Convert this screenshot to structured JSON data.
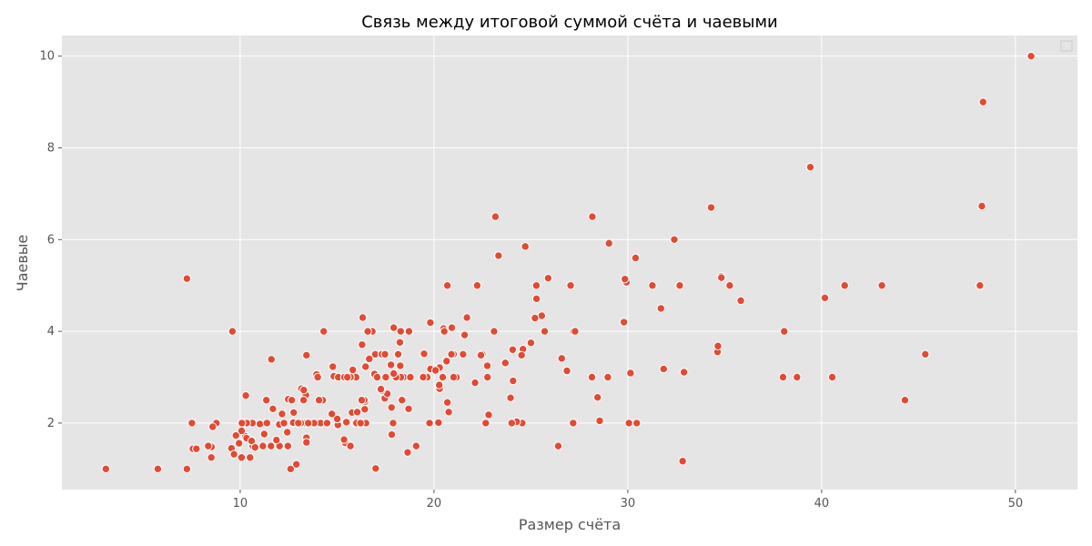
{
  "chart_data": {
    "type": "scatter",
    "title": "Связь между итоговой суммой счёта и чаевыми",
    "xlabel": "Размер счёта",
    "ylabel": "Чаевые",
    "xlim": [
      0.8,
      53.2
    ],
    "ylim": [
      0.55,
      10.45
    ],
    "xticks": [
      10,
      20,
      30,
      40,
      50
    ],
    "yticks": [
      2,
      4,
      6,
      8,
      10
    ],
    "grid": true,
    "legend": "top-right",
    "colors": {
      "background": "#E5E5E5",
      "point": "#E24A33",
      "grid": "#FFFFFF"
    },
    "points": [
      [
        16.99,
        1.01
      ],
      [
        10.34,
        1.66
      ],
      [
        21.01,
        3.5
      ],
      [
        23.68,
        3.31
      ],
      [
        24.59,
        3.61
      ],
      [
        25.29,
        4.71
      ],
      [
        8.77,
        2.0
      ],
      [
        26.88,
        3.12
      ],
      [
        15.04,
        1.96
      ],
      [
        14.78,
        3.23
      ],
      [
        10.27,
        1.71
      ],
      [
        35.26,
        5.0
      ],
      [
        15.42,
        1.57
      ],
      [
        18.43,
        3.0
      ],
      [
        14.83,
        3.02
      ],
      [
        21.58,
        3.92
      ],
      [
        10.33,
        1.67
      ],
      [
        16.29,
        3.71
      ],
      [
        16.97,
        3.5
      ],
      [
        20.65,
        3.35
      ],
      [
        17.92,
        4.08
      ],
      [
        20.29,
        2.75
      ],
      [
        15.77,
        2.23
      ],
      [
        39.42,
        7.58
      ],
      [
        19.82,
        3.18
      ],
      [
        17.81,
        2.34
      ],
      [
        13.37,
        2.0
      ],
      [
        12.69,
        2.0
      ],
      [
        21.7,
        4.3
      ],
      [
        19.65,
        3.0
      ],
      [
        9.55,
        1.45
      ],
      [
        18.35,
        2.5
      ],
      [
        15.06,
        3.0
      ],
      [
        20.69,
        2.45
      ],
      [
        17.78,
        3.27
      ],
      [
        24.06,
        3.6
      ],
      [
        16.31,
        2.0
      ],
      [
        16.93,
        3.07
      ],
      [
        18.69,
        2.31
      ],
      [
        31.27,
        5.0
      ],
      [
        16.04,
        2.24
      ],
      [
        17.46,
        2.54
      ],
      [
        13.94,
        3.06
      ],
      [
        9.68,
        1.32
      ],
      [
        30.4,
        5.6
      ],
      [
        18.29,
        3.0
      ],
      [
        22.23,
        5.0
      ],
      [
        32.4,
        6.0
      ],
      [
        28.55,
        2.05
      ],
      [
        18.04,
        3.0
      ],
      [
        12.54,
        2.5
      ],
      [
        10.29,
        2.6
      ],
      [
        34.81,
        5.2
      ],
      [
        9.94,
        1.56
      ],
      [
        25.56,
        4.34
      ],
      [
        19.49,
        3.51
      ],
      [
        38.01,
        3.0
      ],
      [
        26.41,
        1.5
      ],
      [
        11.24,
        1.76
      ],
      [
        48.27,
        6.73
      ],
      [
        20.29,
        3.21
      ],
      [
        13.81,
        2.0
      ],
      [
        11.02,
        1.98
      ],
      [
        18.29,
        3.76
      ],
      [
        17.59,
        2.64
      ],
      [
        20.08,
        3.15
      ],
      [
        16.45,
        2.47
      ],
      [
        3.07,
        1.0
      ],
      [
        20.23,
        2.01
      ],
      [
        15.01,
        2.09
      ],
      [
        12.02,
        1.97
      ],
      [
        17.07,
        3.0
      ],
      [
        26.86,
        3.14
      ],
      [
        25.28,
        5.0
      ],
      [
        14.73,
        2.2
      ],
      [
        10.51,
        1.25
      ],
      [
        17.92,
        3.08
      ],
      [
        27.2,
        4.0
      ],
      [
        22.76,
        3.0
      ],
      [
        17.29,
        2.71
      ],
      [
        19.44,
        3.0
      ],
      [
        16.66,
        3.4
      ],
      [
        10.07,
        1.83
      ],
      [
        32.68,
        5.0
      ],
      [
        15.98,
        2.03
      ],
      [
        34.83,
        5.17
      ],
      [
        13.03,
        2.0
      ],
      [
        18.28,
        4.0
      ],
      [
        24.71,
        5.85
      ],
      [
        21.16,
        3.0
      ],
      [
        28.97,
        3.0
      ],
      [
        22.49,
        3.5
      ],
      [
        5.75,
        1.0
      ],
      [
        16.32,
        4.3
      ],
      [
        22.75,
        3.25
      ],
      [
        40.17,
        4.73
      ],
      [
        27.28,
        4.0
      ],
      [
        12.03,
        1.5
      ],
      [
        21.01,
        3.0
      ],
      [
        12.46,
        1.5
      ],
      [
        11.35,
        2.5
      ],
      [
        15.38,
        3.0
      ],
      [
        44.3,
        2.5
      ],
      [
        22.42,
        3.48
      ],
      [
        20.92,
        4.08
      ],
      [
        15.36,
        1.64
      ],
      [
        20.49,
        4.06
      ],
      [
        25.21,
        4.29
      ],
      [
        18.24,
        3.76
      ],
      [
        14.31,
        4.0
      ],
      [
        14.0,
        3.0
      ],
      [
        7.25,
        1.0
      ],
      [
        38.07,
        4.0
      ],
      [
        23.95,
        2.55
      ],
      [
        25.71,
        4.0
      ],
      [
        17.31,
        3.5
      ],
      [
        29.93,
        5.07
      ],
      [
        10.65,
        1.5
      ],
      [
        12.43,
        1.8
      ],
      [
        24.08,
        2.92
      ],
      [
        11.69,
        2.31
      ],
      [
        13.42,
        1.68
      ],
      [
        14.26,
        2.5
      ],
      [
        15.95,
        2.0
      ],
      [
        12.48,
        2.52
      ],
      [
        29.8,
        4.2
      ],
      [
        8.52,
        1.48
      ],
      [
        14.52,
        2.0
      ],
      [
        11.38,
        2.0
      ],
      [
        22.82,
        2.18
      ],
      [
        19.08,
        1.5
      ],
      [
        20.27,
        2.83
      ],
      [
        11.17,
        1.5
      ],
      [
        12.26,
        2.0
      ],
      [
        18.26,
        3.25
      ],
      [
        8.51,
        1.25
      ],
      [
        10.33,
        2.0
      ],
      [
        14.15,
        2.0
      ],
      [
        16.0,
        2.0
      ],
      [
        13.16,
        2.75
      ],
      [
        17.47,
        3.5
      ],
      [
        34.3,
        6.7
      ],
      [
        41.19,
        5.0
      ],
      [
        27.05,
        5.0
      ],
      [
        16.43,
        2.3
      ],
      [
        8.35,
        1.5
      ],
      [
        18.64,
        1.36
      ],
      [
        11.87,
        1.63
      ],
      [
        9.78,
        1.73
      ],
      [
        7.51,
        2.0
      ],
      [
        14.07,
        2.5
      ],
      [
        13.13,
        2.0
      ],
      [
        17.26,
        2.74
      ],
      [
        24.55,
        2.0
      ],
      [
        19.77,
        2.0
      ],
      [
        29.85,
        5.14
      ],
      [
        48.17,
        5.0
      ],
      [
        25.0,
        3.75
      ],
      [
        13.39,
        2.61
      ],
      [
        16.49,
        2.0
      ],
      [
        21.5,
        3.5
      ],
      [
        12.66,
        2.5
      ],
      [
        16.21,
        2.0
      ],
      [
        13.81,
        2.0
      ],
      [
        17.51,
        3.0
      ],
      [
        24.52,
        3.48
      ],
      [
        20.76,
        2.24
      ],
      [
        31.71,
        4.5
      ],
      [
        10.59,
        1.61
      ],
      [
        10.63,
        2.0
      ],
      [
        50.81,
        10.0
      ],
      [
        15.81,
        3.16
      ],
      [
        7.25,
        5.15
      ],
      [
        31.85,
        3.18
      ],
      [
        16.82,
        4.0
      ],
      [
        32.9,
        3.11
      ],
      [
        17.89,
        2.0
      ],
      [
        14.48,
        2.0
      ],
      [
        9.6,
        4.0
      ],
      [
        34.63,
        3.55
      ],
      [
        34.65,
        3.68
      ],
      [
        23.33,
        5.65
      ],
      [
        45.35,
        3.5
      ],
      [
        23.17,
        6.5
      ],
      [
        40.55,
        3.0
      ],
      [
        20.69,
        5.0
      ],
      [
        20.9,
        3.5
      ],
      [
        30.46,
        2.0
      ],
      [
        18.15,
        3.5
      ],
      [
        23.1,
        4.0
      ],
      [
        15.69,
        1.5
      ],
      [
        19.81,
        4.19
      ],
      [
        28.44,
        2.56
      ],
      [
        15.48,
        2.02
      ],
      [
        16.58,
        4.0
      ],
      [
        7.56,
        1.44
      ],
      [
        10.34,
        2.0
      ],
      [
        43.11,
        5.0
      ],
      [
        13.0,
        2.0
      ],
      [
        13.51,
        2.0
      ],
      [
        18.71,
        4.0
      ],
      [
        12.74,
        2.01
      ],
      [
        13.0,
        2.0
      ],
      [
        16.4,
        2.5
      ],
      [
        20.53,
        4.0
      ],
      [
        16.47,
        3.23
      ],
      [
        26.59,
        3.41
      ],
      [
        38.73,
        3.0
      ],
      [
        24.27,
        2.03
      ],
      [
        12.76,
        2.23
      ],
      [
        30.06,
        2.0
      ],
      [
        25.89,
        5.16
      ],
      [
        48.33,
        9.0
      ],
      [
        13.27,
        2.5
      ],
      [
        28.17,
        6.5
      ],
      [
        12.9,
        1.1
      ],
      [
        28.15,
        3.0
      ],
      [
        11.59,
        1.5
      ],
      [
        7.74,
        1.44
      ],
      [
        30.14,
        3.09
      ],
      [
        12.16,
        2.2
      ],
      [
        13.42,
        3.48
      ],
      [
        8.58,
        1.92
      ],
      [
        15.98,
        3.0
      ],
      [
        13.42,
        1.58
      ],
      [
        16.27,
        2.5
      ],
      [
        10.09,
        2.0
      ],
      [
        20.45,
        3.0
      ],
      [
        13.28,
        2.72
      ],
      [
        22.12,
        2.88
      ],
      [
        24.01,
        2.0
      ],
      [
        15.69,
        3.0
      ],
      [
        11.61,
        3.39
      ],
      [
        10.77,
        1.47
      ],
      [
        15.53,
        3.0
      ],
      [
        10.07,
        1.25
      ],
      [
        12.6,
        1.0
      ],
      [
        32.83,
        1.17
      ],
      [
        35.83,
        4.67
      ],
      [
        29.03,
        5.92
      ],
      [
        27.18,
        2.0
      ],
      [
        22.67,
        2.0
      ],
      [
        17.82,
        1.75
      ],
      [
        18.78,
        3.0
      ]
    ]
  }
}
